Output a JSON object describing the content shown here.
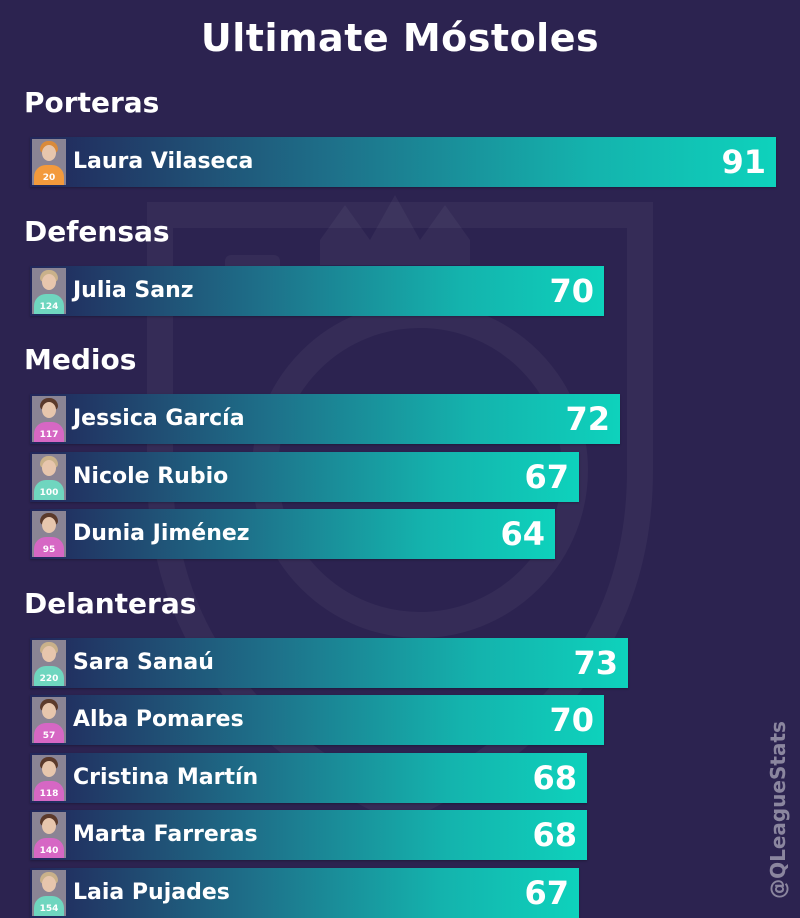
{
  "title": "Ultimate Móstoles",
  "watermark": "@QLeagueStats",
  "colors": {
    "background": "#2c2350",
    "bar_start": "#22265a",
    "bar_end": "#0ed2bc",
    "text": "#ffffff"
  },
  "chart_data": {
    "type": "bar",
    "orientation": "horizontal",
    "xlim": [
      0,
      100
    ],
    "grid": false,
    "groups": [
      {
        "label": "Porteras",
        "players": [
          {
            "name": "Laura Vilaseca",
            "value": 91,
            "number": "20",
            "kit": "orange"
          }
        ]
      },
      {
        "label": "Defensas",
        "players": [
          {
            "name": "Julia Sanz",
            "value": 70,
            "number": "124",
            "kit": "teal"
          }
        ]
      },
      {
        "label": "Medios",
        "players": [
          {
            "name": "Jessica García",
            "value": 72,
            "number": "117",
            "kit": "pink"
          },
          {
            "name": "Nicole Rubio",
            "value": 67,
            "number": "100",
            "kit": "teal"
          },
          {
            "name": "Dunia Jiménez",
            "value": 64,
            "number": "95",
            "kit": "pink"
          }
        ]
      },
      {
        "label": "Delanteras",
        "players": [
          {
            "name": "Sara Sanaú",
            "value": 73,
            "number": "220",
            "kit": "teal"
          },
          {
            "name": "Alba Pomares",
            "value": 70,
            "number": "57",
            "kit": "pink"
          },
          {
            "name": "Cristina Martín",
            "value": 68,
            "number": "118",
            "kit": "pink"
          },
          {
            "name": "Marta Farreras",
            "value": 68,
            "number": "140",
            "kit": "pink"
          },
          {
            "name": "Laia Pujades",
            "value": 67,
            "number": "154",
            "kit": "teal"
          }
        ]
      }
    ]
  }
}
